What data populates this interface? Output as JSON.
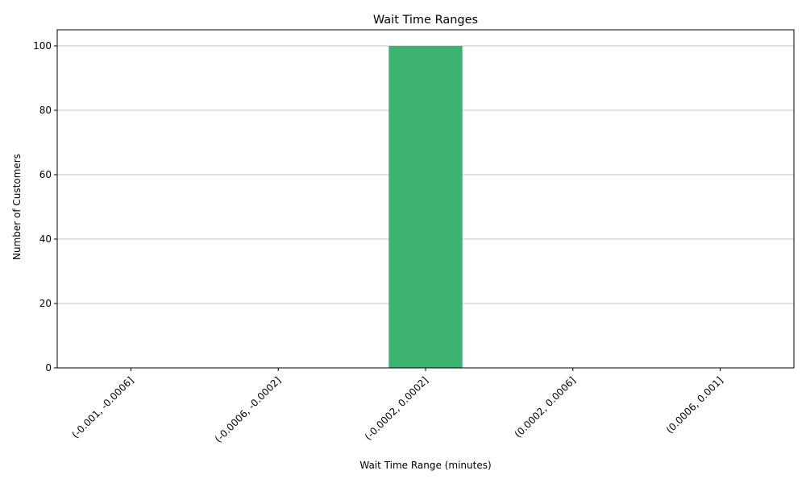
{
  "chart_data": {
    "type": "bar",
    "title": "Wait Time Ranges",
    "xlabel": "Wait Time Range (minutes)",
    "ylabel": "Number of Customers",
    "categories": [
      "(-0.001, -0.0006]",
      "(-0.0006, -0.0002]",
      "(-0.0002, 0.0002]",
      "(0.0002, 0.0006]",
      "(0.0006, 0.001]"
    ],
    "values": [
      0,
      0,
      100,
      0,
      0
    ],
    "ylim": [
      0,
      105
    ],
    "yticks": [
      0,
      20,
      40,
      60,
      80,
      100
    ],
    "grid": "horizontal",
    "bar_color": "#3cb371",
    "grid_color": "#b0b0b0"
  }
}
